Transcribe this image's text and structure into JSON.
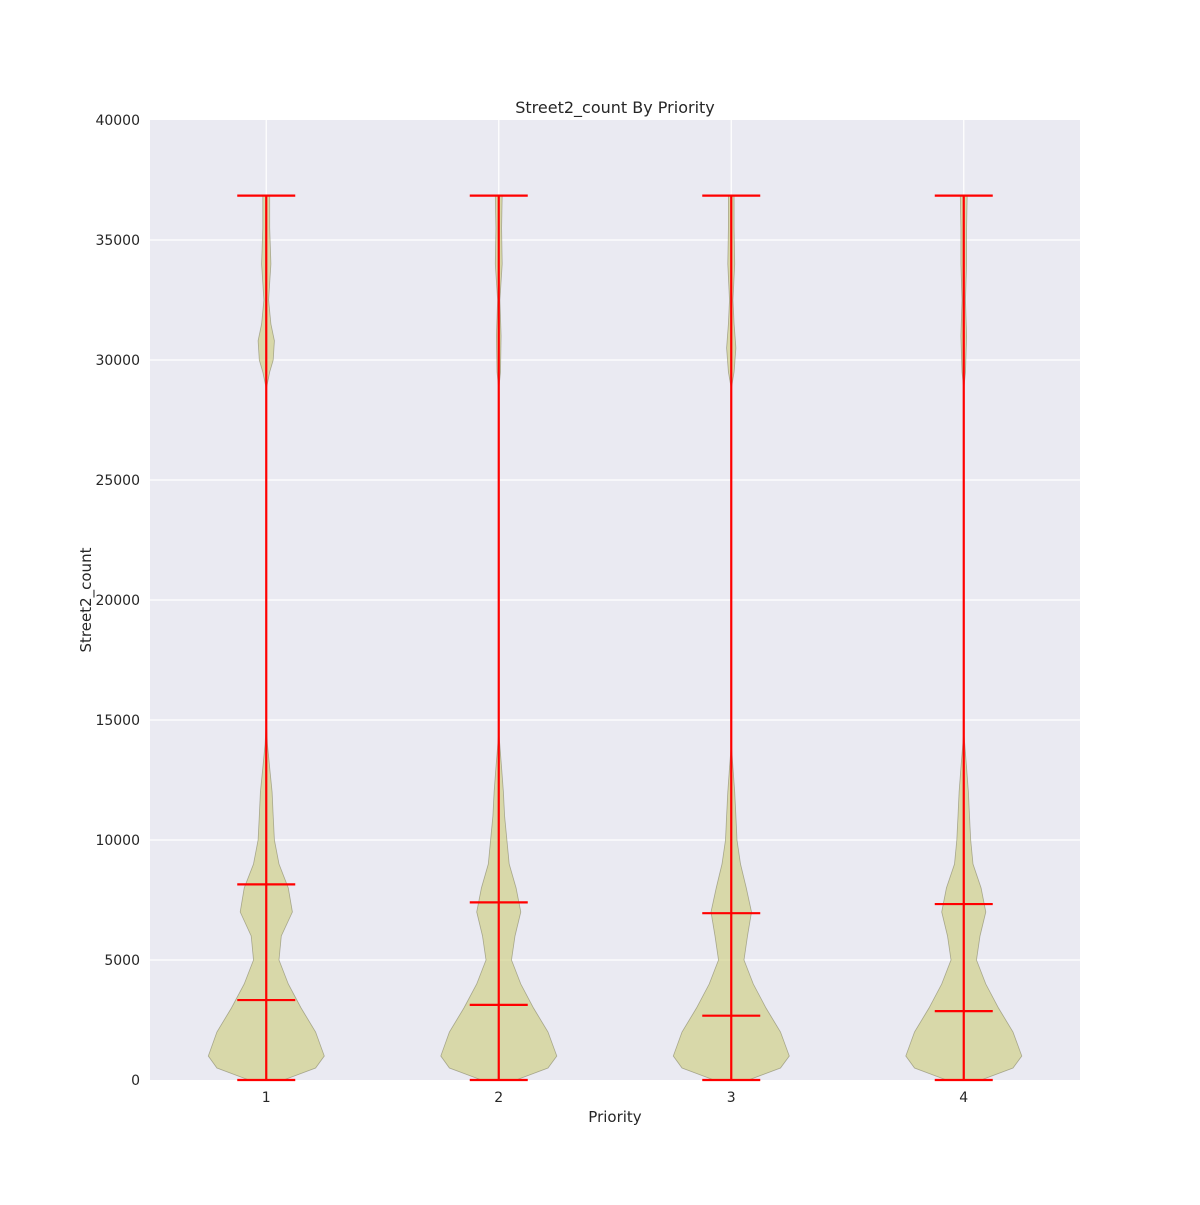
{
  "chart_data": {
    "type": "violin",
    "title": "Street2_count By Priority",
    "xlabel": "Priority",
    "ylabel": "Street2_count",
    "ylim": [
      0,
      40000
    ],
    "yticks": [
      0,
      5000,
      10000,
      15000,
      20000,
      25000,
      30000,
      35000,
      40000
    ],
    "ytick_labels": [
      "0",
      "5000",
      "10000",
      "15000",
      "20000",
      "25000",
      "30000",
      "35000",
      "40000"
    ],
    "categories": [
      "1",
      "2",
      "3",
      "4"
    ],
    "grid": true,
    "colors": {
      "plot_background": "#eaeaf2",
      "violin_fill": "#d9d99a",
      "stat_lines": "#ff0000",
      "grid": "#ffffff"
    },
    "series": [
      {
        "category": "1",
        "min": 0,
        "max": 36850,
        "mean": 8150,
        "median": 3330,
        "density_profile": [
          [
            0,
            0.3
          ],
          [
            500,
            0.85
          ],
          [
            1000,
            1.0
          ],
          [
            2000,
            0.85
          ],
          [
            3000,
            0.6
          ],
          [
            4000,
            0.38
          ],
          [
            5000,
            0.22
          ],
          [
            6000,
            0.26
          ],
          [
            7000,
            0.45
          ],
          [
            8000,
            0.38
          ],
          [
            9000,
            0.22
          ],
          [
            10000,
            0.14
          ],
          [
            11000,
            0.12
          ],
          [
            12000,
            0.1
          ],
          [
            13000,
            0.06
          ],
          [
            14000,
            0.02
          ],
          [
            15000,
            0.0
          ],
          [
            28800,
            0.0
          ],
          [
            29500,
            0.06
          ],
          [
            30000,
            0.12
          ],
          [
            30800,
            0.14
          ],
          [
            31500,
            0.08
          ],
          [
            32500,
            0.04
          ],
          [
            34000,
            0.08
          ],
          [
            35500,
            0.06
          ],
          [
            36850,
            0.06
          ]
        ]
      },
      {
        "category": "2",
        "min": 0,
        "max": 36850,
        "mean": 7400,
        "median": 3130,
        "density_profile": [
          [
            0,
            0.3
          ],
          [
            500,
            0.85
          ],
          [
            1000,
            1.0
          ],
          [
            2000,
            0.85
          ],
          [
            3000,
            0.6
          ],
          [
            4000,
            0.38
          ],
          [
            5000,
            0.22
          ],
          [
            6000,
            0.28
          ],
          [
            7000,
            0.38
          ],
          [
            8000,
            0.3
          ],
          [
            9000,
            0.18
          ],
          [
            10000,
            0.14
          ],
          [
            11000,
            0.1
          ],
          [
            12000,
            0.08
          ],
          [
            13000,
            0.05
          ],
          [
            14500,
            0.0
          ],
          [
            28800,
            0.0
          ],
          [
            29500,
            0.03
          ],
          [
            31000,
            0.04
          ],
          [
            32500,
            0.02
          ],
          [
            34000,
            0.06
          ],
          [
            35500,
            0.05
          ],
          [
            36850,
            0.06
          ]
        ]
      },
      {
        "category": "3",
        "min": 0,
        "max": 36850,
        "mean": 6950,
        "median": 2680,
        "density_profile": [
          [
            0,
            0.3
          ],
          [
            500,
            0.85
          ],
          [
            1000,
            1.0
          ],
          [
            2000,
            0.85
          ],
          [
            3000,
            0.6
          ],
          [
            4000,
            0.38
          ],
          [
            5000,
            0.22
          ],
          [
            6000,
            0.28
          ],
          [
            7000,
            0.35
          ],
          [
            8000,
            0.26
          ],
          [
            9000,
            0.16
          ],
          [
            10000,
            0.1
          ],
          [
            11000,
            0.08
          ],
          [
            12000,
            0.06
          ],
          [
            13000,
            0.03
          ],
          [
            14000,
            0.0
          ],
          [
            28800,
            0.0
          ],
          [
            29500,
            0.05
          ],
          [
            30500,
            0.08
          ],
          [
            31500,
            0.05
          ],
          [
            32500,
            0.03
          ],
          [
            34000,
            0.06
          ],
          [
            35500,
            0.05
          ],
          [
            36850,
            0.05
          ]
        ]
      },
      {
        "category": "4",
        "min": 0,
        "max": 36850,
        "mean": 7330,
        "median": 2870,
        "density_profile": [
          [
            0,
            0.3
          ],
          [
            500,
            0.85
          ],
          [
            1000,
            1.0
          ],
          [
            2000,
            0.85
          ],
          [
            3000,
            0.6
          ],
          [
            4000,
            0.38
          ],
          [
            5000,
            0.22
          ],
          [
            6000,
            0.28
          ],
          [
            7000,
            0.38
          ],
          [
            8000,
            0.3
          ],
          [
            9000,
            0.16
          ],
          [
            10000,
            0.12
          ],
          [
            11000,
            0.1
          ],
          [
            12000,
            0.08
          ],
          [
            13000,
            0.05
          ],
          [
            14500,
            0.0
          ],
          [
            28800,
            0.0
          ],
          [
            29500,
            0.03
          ],
          [
            31000,
            0.05
          ],
          [
            32500,
            0.03
          ],
          [
            34000,
            0.05
          ],
          [
            35500,
            0.05
          ],
          [
            36850,
            0.06
          ]
        ]
      }
    ]
  }
}
